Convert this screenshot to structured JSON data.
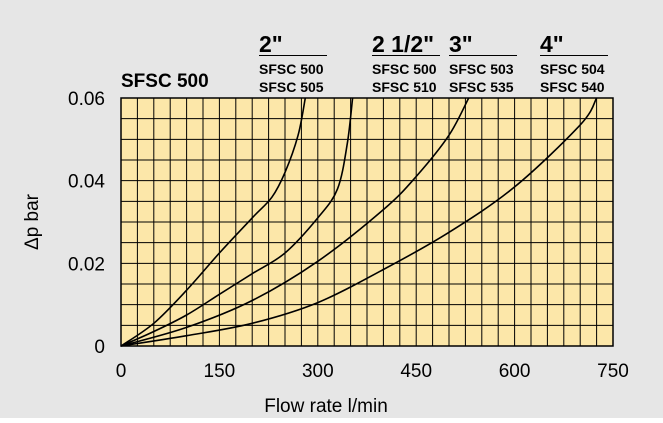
{
  "colors": {
    "background": "#e6e6e6",
    "plot_fill": "#fce7a9",
    "grid": "#000000",
    "curve": "#000000"
  },
  "chart_data": {
    "type": "line",
    "title": "SFSC 500",
    "xlabel": "Flow rate l/min",
    "ylabel": "Δp bar",
    "xlim": [
      0,
      750
    ],
    "ylim": [
      0,
      0.06
    ],
    "x_ticks": [
      "0",
      "150",
      "300",
      "450",
      "600",
      "750"
    ],
    "y_ticks": [
      "0",
      "0.02",
      "0.04",
      "0.06"
    ],
    "grid": true,
    "series": [
      {
        "name": "2\"",
        "models": [
          "SFSC 500",
          "SFSC 505"
        ],
        "x": [
          0,
          50,
          100,
          150,
          200,
          230,
          250,
          270,
          281
        ],
        "y": [
          0,
          0.0055,
          0.0135,
          0.0225,
          0.031,
          0.036,
          0.042,
          0.051,
          0.06
        ]
      },
      {
        "name": "2 1/2\"",
        "models": [
          "SFSC 500",
          "SFSC 510"
        ],
        "x": [
          0,
          50,
          100,
          150,
          200,
          250,
          300,
          330,
          345,
          353
        ],
        "y": [
          0,
          0.0035,
          0.0075,
          0.0125,
          0.0175,
          0.0225,
          0.031,
          0.038,
          0.049,
          0.06
        ]
      },
      {
        "name": "3\"",
        "models": [
          "SFSC 503",
          "SFSC 535"
        ],
        "x": [
          0,
          100,
          200,
          300,
          400,
          450,
          500,
          530
        ],
        "y": [
          0,
          0.0045,
          0.011,
          0.0205,
          0.033,
          0.041,
          0.051,
          0.06
        ]
      },
      {
        "name": "4\"",
        "models": [
          "SFSC 504",
          "SFSC 540"
        ],
        "x": [
          0,
          100,
          200,
          300,
          400,
          500,
          600,
          700,
          725
        ],
        "y": [
          0,
          0.0025,
          0.0055,
          0.0105,
          0.0185,
          0.0275,
          0.0385,
          0.0535,
          0.06
        ]
      }
    ]
  }
}
